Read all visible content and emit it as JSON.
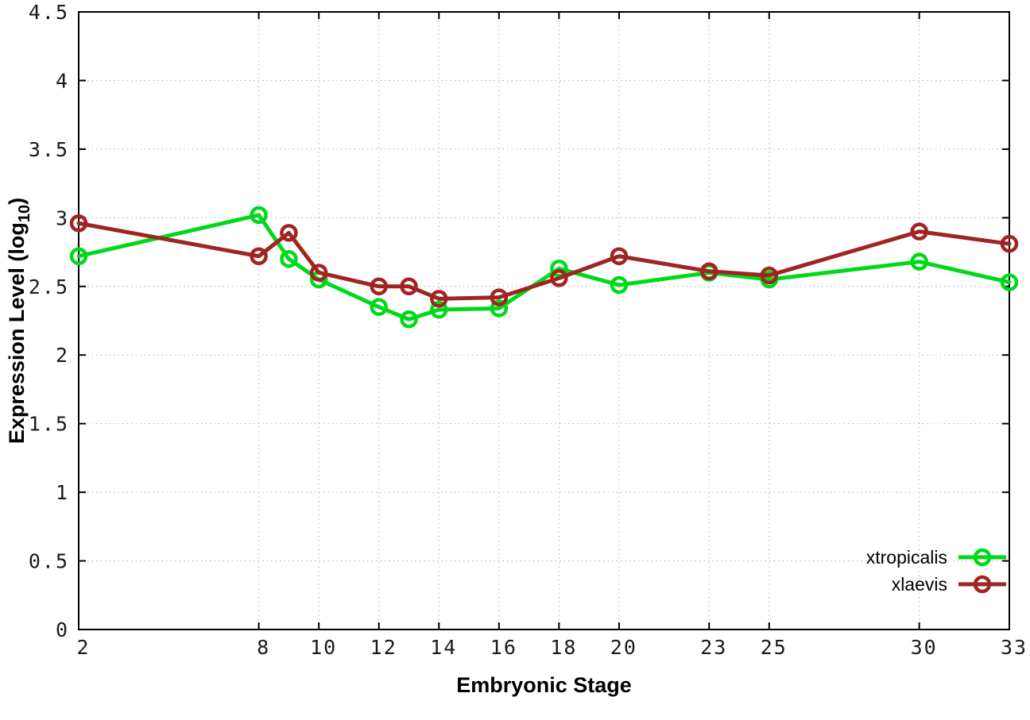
{
  "chart_data": {
    "type": "line",
    "title": "",
    "xlabel": "Embryonic Stage",
    "ylabel_prefix": "Expression Level (log",
    "ylabel_subscript": "10",
    "ylabel_suffix": ")",
    "xlim": [
      2,
      33
    ],
    "ylim": [
      0,
      4.5
    ],
    "grid": true,
    "legend_position": "bottom-right",
    "x": [
      2,
      8,
      9,
      10,
      12,
      13,
      14,
      16,
      18,
      20,
      23,
      25,
      30,
      33
    ],
    "x_ticks": [
      2,
      8,
      10,
      12,
      14,
      16,
      18,
      20,
      23,
      25,
      30,
      33
    ],
    "x_tick_labels": [
      "2",
      "8",
      "10",
      "12",
      "14",
      "16",
      "18",
      "20",
      "23",
      "25",
      "30",
      "33"
    ],
    "y_ticks": [
      0,
      0.5,
      1,
      1.5,
      2,
      2.5,
      3,
      3.5,
      4,
      4.5
    ],
    "y_tick_labels": [
      "0",
      "0.5",
      "1",
      "1.5",
      "2",
      "2.5",
      "3",
      "3.5",
      "4",
      "4.5"
    ],
    "series": [
      {
        "name": "xtropicalis",
        "color": "#00d91a",
        "marker": "open-circle",
        "values": [
          2.72,
          3.02,
          2.7,
          2.55,
          2.35,
          2.26,
          2.33,
          2.34,
          2.63,
          2.51,
          2.6,
          2.55,
          2.68,
          2.53
        ]
      },
      {
        "name": "xlaevis",
        "color": "#a02421",
        "marker": "open-circle",
        "values": [
          2.96,
          2.72,
          2.89,
          2.6,
          2.5,
          2.5,
          2.41,
          2.42,
          2.56,
          2.72,
          2.61,
          2.58,
          2.9,
          2.81
        ]
      }
    ],
    "style": {
      "grid_color": "#b4b4b4",
      "border_color": "#000000",
      "background": "#ffffff",
      "line_width": 5,
      "marker_radius": 9,
      "marker_stroke": 4.5
    }
  }
}
